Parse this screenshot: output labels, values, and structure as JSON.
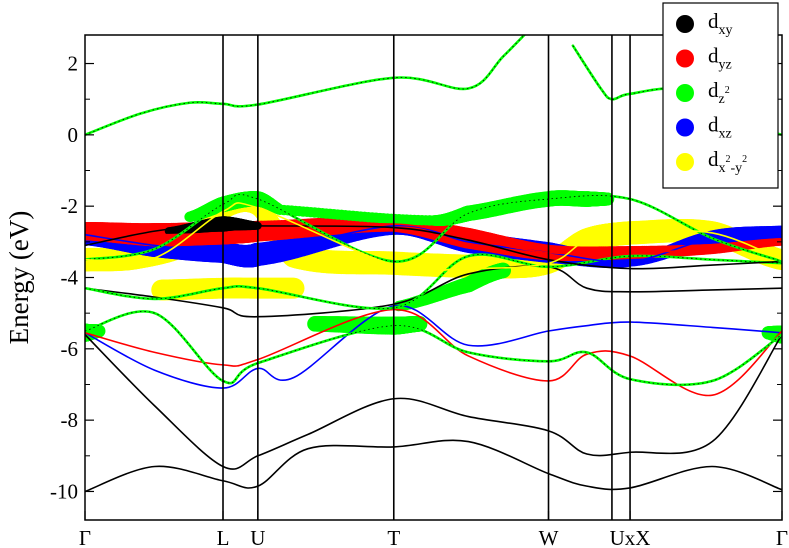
{
  "chart_data": {
    "type": "line",
    "ylabel": "Energy (eV)",
    "ylim": [
      -10.8,
      2.8
    ],
    "yticks": [
      2,
      0,
      -2,
      -4,
      -6,
      -8,
      -10
    ],
    "ytick_labels": [
      "2",
      "0",
      "-2",
      "-4",
      "-6",
      "-8",
      "-10"
    ],
    "xlim": [
      0,
      1
    ],
    "kpoints": [
      {
        "label": "Γ",
        "x": 0.0
      },
      {
        "label": "L",
        "x": 0.198
      },
      {
        "label": "U",
        "x": 0.248
      },
      {
        "label": "T",
        "x": 0.443
      },
      {
        "label": "W",
        "x": 0.665
      },
      {
        "label": "UxX",
        "x": 0.782
      },
      {
        "label": "Γ",
        "x": 1.0
      }
    ],
    "kpath_dividers": [
      0.198,
      0.248,
      0.443,
      0.665,
      0.756,
      0.782
    ],
    "legend": {
      "position": "top-right",
      "entries": [
        {
          "base": "d",
          "sub": "xy",
          "sup": "",
          "sub2": "",
          "sup2": "",
          "tail": "",
          "color": "#000000"
        },
        {
          "base": "d",
          "sub": "yz",
          "sup": "",
          "sub2": "",
          "sup2": "",
          "tail": "",
          "color": "#ff0000"
        },
        {
          "base": "d",
          "sub": "z",
          "sup": "2",
          "sub2": "",
          "sup2": "",
          "tail": "",
          "color": "#00ff00"
        },
        {
          "base": "d",
          "sub": "xz",
          "sup": "",
          "sub2": "",
          "sup2": "",
          "tail": "",
          "color": "#0000ff"
        },
        {
          "base": "d",
          "sub": "x",
          "sup": "2",
          "sub2": "-y",
          "sup2": "2",
          "tail": "",
          "color": "#ffff00"
        }
      ]
    },
    "bands": [
      {
        "color": "#000000",
        "x": [
          0,
          0.1,
          0.198,
          0.248,
          0.32,
          0.443,
          0.55,
          0.665,
          0.72,
          0.782,
          0.9,
          1.0
        ],
        "y": [
          -10.0,
          -9.3,
          -9.7,
          -9.85,
          -8.8,
          -8.75,
          -8.6,
          -9.5,
          -9.85,
          -9.9,
          -9.3,
          -9.95
        ]
      },
      {
        "color": "#000000",
        "x": [
          0,
          0.1,
          0.198,
          0.248,
          0.32,
          0.443,
          0.55,
          0.665,
          0.72,
          0.782,
          0.9,
          1.0
        ],
        "y": [
          -5.6,
          -7.6,
          -9.3,
          -9.0,
          -8.4,
          -7.4,
          -7.9,
          -8.3,
          -8.95,
          -8.9,
          -8.6,
          -5.6
        ]
      },
      {
        "color": "#0000ff",
        "x": [
          0,
          0.1,
          0.198,
          0.248,
          0.3,
          0.443,
          0.55,
          0.665,
          0.72,
          0.782,
          0.9,
          1.0
        ],
        "y": [
          -5.55,
          -6.6,
          -7.1,
          -6.55,
          -6.8,
          -4.8,
          -5.9,
          -5.5,
          -5.35,
          -5.25,
          -5.4,
          -5.55
        ]
      },
      {
        "color": "#ff0000",
        "x": [
          0,
          0.1,
          0.198,
          0.248,
          0.443,
          0.55,
          0.665,
          0.72,
          0.782,
          0.9,
          1.0
        ],
        "y": [
          -5.55,
          -6.1,
          -6.45,
          -6.3,
          -4.9,
          -6.2,
          -6.9,
          -6.15,
          -6.2,
          -7.3,
          -5.5
        ]
      },
      {
        "color": "#00ff00",
        "x": [
          0,
          0.1,
          0.198,
          0.248,
          0.443,
          0.55,
          0.665,
          0.72,
          0.782,
          0.9,
          1.0
        ],
        "y": [
          -5.5,
          -5.0,
          -6.9,
          -6.4,
          -5.35,
          -6.1,
          -6.35,
          -6.1,
          -6.85,
          -6.9,
          -5.6
        ]
      },
      {
        "color": "#000000",
        "x": [
          0,
          0.1,
          0.198,
          0.248,
          0.443,
          0.55,
          0.665,
          0.72,
          0.782,
          0.9,
          1.0
        ],
        "y": [
          -4.3,
          -4.55,
          -4.85,
          -5.1,
          -4.75,
          -3.9,
          -3.7,
          -4.3,
          -4.4,
          -4.35,
          -4.3
        ]
      },
      {
        "color": "#00ff00",
        "x": [
          0,
          0.1,
          0.198,
          0.248,
          0.443,
          0.55,
          0.665,
          0.782,
          0.9,
          1.0
        ],
        "y": [
          -4.3,
          -4.6,
          -4.3,
          -4.3,
          -4.85,
          -3.4,
          -3.7,
          -3.4,
          -3.5,
          -3.6
        ]
      },
      {
        "color": "#0000ff",
        "x": [
          0,
          0.1,
          0.198,
          0.248,
          0.443,
          0.55,
          0.665,
          0.782,
          0.9,
          1.0
        ],
        "y": [
          -2.8,
          -3.1,
          -3.3,
          -3.35,
          -2.55,
          -3.0,
          -3.3,
          -3.55,
          -2.9,
          -2.8
        ]
      },
      {
        "color": "#ff0000",
        "x": [
          0,
          0.1,
          0.198,
          0.248,
          0.443,
          0.55,
          0.665,
          0.782,
          0.9,
          1.0
        ],
        "y": [
          -2.7,
          -2.8,
          -2.75,
          -2.7,
          -2.5,
          -2.9,
          -3.3,
          -3.3,
          -3.2,
          -3.0
        ]
      },
      {
        "color": "#000000",
        "x": [
          0,
          0.1,
          0.198,
          0.248,
          0.443,
          0.55,
          0.665,
          0.782,
          0.9,
          1.0
        ],
        "y": [
          -3.1,
          -2.7,
          -2.5,
          -2.55,
          -2.6,
          -2.95,
          -3.5,
          -3.75,
          -3.65,
          -3.55
        ]
      },
      {
        "color": "#00ff00",
        "x": [
          0,
          0.1,
          0.198,
          0.248,
          0.443,
          0.55,
          0.665,
          0.782,
          0.9,
          1.0
        ],
        "y": [
          -3.5,
          -3.2,
          -1.95,
          -1.8,
          -3.55,
          -2.2,
          -1.8,
          -1.8,
          -2.9,
          -3.55
        ]
      },
      {
        "color": "#ffff00",
        "x": [
          0,
          0.1,
          0.198,
          0.248,
          0.443,
          0.55,
          0.665,
          0.72,
          0.782,
          0.9,
          1.0
        ],
        "y": [
          -3.5,
          -3.45,
          -2.15,
          -2.05,
          -3.65,
          -3.75,
          -3.6,
          -2.95,
          -2.75,
          -2.75,
          -3.5
        ]
      },
      {
        "color": "#00ff00",
        "x": [
          0,
          0.08,
          0.15,
          0.198,
          0.248,
          0.443,
          0.55,
          0.6,
          0.64
        ],
        "y": [
          0.0,
          0.6,
          0.9,
          0.87,
          0.85,
          1.6,
          1.3,
          2.2,
          3.0
        ]
      },
      {
        "color": "#00ff00",
        "x": [
          0.7,
          0.74,
          0.756,
          0.782,
          0.86,
          0.95,
          1.0
        ],
        "y": [
          2.5,
          1.3,
          1.0,
          1.15,
          1.25,
          0.3,
          0.0
        ]
      }
    ],
    "weights": [
      {
        "color": "#ffff00",
        "x": [
          0,
          0.07,
          0.15,
          0.198,
          0.248,
          0.3,
          0.443,
          0.6,
          0.665,
          0.72,
          0.782,
          0.9,
          1.0
        ],
        "y": [
          -3.5,
          -3.45,
          -3.1,
          -2.15,
          -2.05,
          -3.4,
          -3.6,
          -3.7,
          -3.6,
          -2.95,
          -2.75,
          -2.75,
          -3.5
        ],
        "w": [
          0.9,
          0.9,
          0.7,
          0.6,
          0.6,
          0.9,
          0.9,
          0.9,
          0.8,
          0.9,
          0.9,
          0.9,
          0.8
        ]
      },
      {
        "color": "#ffff00",
        "x": [
          0.11,
          0.198,
          0.248,
          0.3
        ],
        "y": [
          -4.35,
          -4.3,
          -4.3,
          -4.3
        ],
        "w": [
          0.8,
          0.8,
          0.8,
          0.8
        ]
      },
      {
        "color": "#0000ff",
        "x": [
          0,
          0.1,
          0.198,
          0.248,
          0.443,
          0.55,
          0.665,
          0.782,
          0.9,
          1.0
        ],
        "y": [
          -2.8,
          -3.1,
          -3.3,
          -3.35,
          -2.55,
          -3.0,
          -3.3,
          -3.55,
          -2.9,
          -2.8
        ],
        "w": [
          0.8,
          0.9,
          0.8,
          0.9,
          0.7,
          0.85,
          0.8,
          0.4,
          0.6,
          0.7
        ]
      },
      {
        "color": "#ff0000",
        "x": [
          0,
          0.1,
          0.198,
          0.248,
          0.443,
          0.55,
          0.665,
          0.782,
          0.9,
          1.0
        ],
        "y": [
          -2.7,
          -2.8,
          -2.75,
          -2.7,
          -2.5,
          -2.9,
          -3.3,
          -3.3,
          -3.2,
          -3.0
        ],
        "w": [
          0.7,
          0.9,
          0.9,
          0.8,
          0.6,
          0.8,
          0.6,
          0.5,
          0.4,
          0.3
        ]
      },
      {
        "color": "#000000",
        "x": [
          0.12,
          0.198,
          0.248
        ],
        "y": [
          -2.7,
          -2.5,
          -2.55
        ],
        "w": [
          0.3,
          0.6,
          0.3
        ]
      },
      {
        "color": "#00ff00",
        "x": [
          0.15,
          0.198,
          0.248,
          0.28,
          0.5,
          0.55,
          0.665,
          0.72,
          0.75
        ],
        "y": [
          -2.3,
          -1.95,
          -1.8,
          -2.1,
          -2.4,
          -2.2,
          -1.8,
          -1.8,
          -1.8
        ],
        "w": [
          0.4,
          0.6,
          0.6,
          0.4,
          0.4,
          0.6,
          0.6,
          0.6,
          0.5
        ]
      },
      {
        "color": "#00ff00",
        "x": [
          0.33,
          0.443,
          0.48
        ],
        "y": [
          -5.3,
          -5.35,
          -5.3
        ],
        "w": [
          0.6,
          0.7,
          0.6
        ]
      },
      {
        "color": "#00ff00",
        "x": [
          0.45,
          0.55,
          0.6
        ],
        "y": [
          -4.8,
          -4.2,
          -3.8
        ],
        "w": [
          0.4,
          0.6,
          0.6
        ]
      },
      {
        "color": "#00ff00",
        "x": [
          0,
          0.02
        ],
        "y": [
          -5.55,
          -5.5
        ],
        "w": [
          0.7,
          0.5
        ]
      },
      {
        "color": "#00ff00",
        "x": [
          0.98,
          1.0
        ],
        "y": [
          -5.55,
          -5.6
        ],
        "w": [
          0.5,
          0.7
        ]
      }
    ]
  }
}
